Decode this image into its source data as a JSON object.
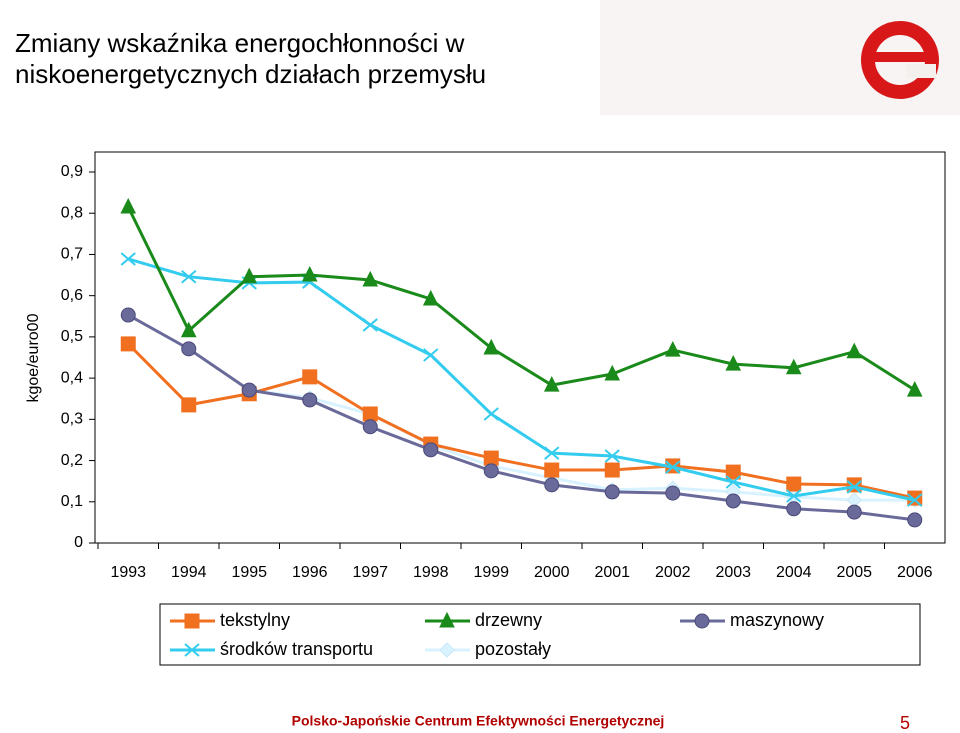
{
  "chart_data": {
    "type": "line",
    "title": "Zmiany wskaźnika energochłonności w niskoenergetycznych działach przemysłu",
    "y_label": "kgoe/euro00",
    "categories": [
      "1993",
      "1994",
      "1995",
      "1996",
      "1997",
      "1998",
      "1999",
      "2000",
      "2001",
      "2002",
      "2003",
      "2004",
      "2005",
      "2006"
    ],
    "series": [
      {
        "name": "tekstylny",
        "color": "#f07020",
        "marker": "square",
        "values": [
          0.483,
          0.335,
          0.362,
          0.403,
          0.313,
          0.24,
          0.206,
          0.177,
          0.177,
          0.187,
          0.172,
          0.143,
          0.141,
          0.109
        ]
      },
      {
        "name": "drzewny",
        "color": "#1a8a1a",
        "marker": "triangle",
        "values": [
          0.815,
          0.515,
          0.646,
          0.65,
          0.638,
          0.592,
          0.473,
          0.383,
          0.41,
          0.468,
          0.434,
          0.425,
          0.464,
          0.371
        ]
      },
      {
        "name": "maszynowy",
        "color": "#6a6a9a",
        "marker": "circle",
        "values": [
          0.553,
          0.471,
          0.371,
          0.347,
          0.282,
          0.226,
          0.175,
          0.141,
          0.124,
          0.121,
          0.102,
          0.083,
          0.075,
          0.056
        ]
      },
      {
        "name": "środków transportu",
        "color": "#33ccee",
        "marker": "x",
        "values": [
          0.689,
          0.646,
          0.631,
          0.633,
          0.529,
          0.456,
          0.313,
          0.218,
          0.211,
          0.184,
          0.148,
          0.114,
          0.136,
          0.104
        ]
      },
      {
        "name": "pozostały",
        "color": "#d8f2ff",
        "marker": "diamond",
        "values": [
          null,
          null,
          0.371,
          0.352,
          0.313,
          0.238,
          0.187,
          0.158,
          0.129,
          0.133,
          0.124,
          0.112,
          0.104,
          0.104
        ]
      }
    ],
    "ylim": [
      0,
      0.9
    ],
    "yticks": [
      0,
      {
        "value": 0.1,
        "label": "0,1"
      },
      {
        "value": 0.2,
        "label": "0,2"
      },
      {
        "value": 0.3,
        "label": "0,3"
      },
      {
        "value": 0.4,
        "label": "0,4"
      },
      {
        "value": 0.5,
        "label": "0,5"
      },
      {
        "value": 0.6,
        "label": "0,6"
      },
      {
        "value": 0.7,
        "label": "0,7"
      },
      {
        "value": 0.8,
        "label": "0,8"
      },
      {
        "value": 0.9,
        "label": "0,9"
      }
    ],
    "grid": false
  },
  "footer": "Polsko-Japońskie Centrum Efektywności Energetycznej",
  "page_number": "5"
}
